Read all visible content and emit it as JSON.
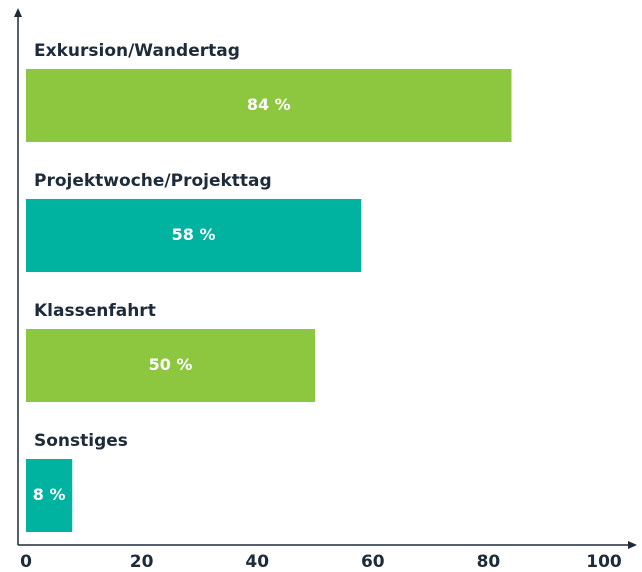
{
  "chart_data": {
    "type": "bar",
    "orientation": "horizontal",
    "categories": [
      "Exkursion/Wandertag",
      "Projektwoche/Projekttag",
      "Klassenfahrt",
      "Sonstiges"
    ],
    "values": [
      84,
      58,
      50,
      8
    ],
    "value_labels": [
      "84 %",
      "58 %",
      "50 %",
      "8 %"
    ],
    "colors": [
      "#8dc63f",
      "#00b3a0",
      "#8dc63f",
      "#00b3a0"
    ],
    "xlim": [
      0,
      100
    ],
    "xticks": [
      0,
      20,
      40,
      60,
      80,
      100
    ],
    "grid": false
  }
}
